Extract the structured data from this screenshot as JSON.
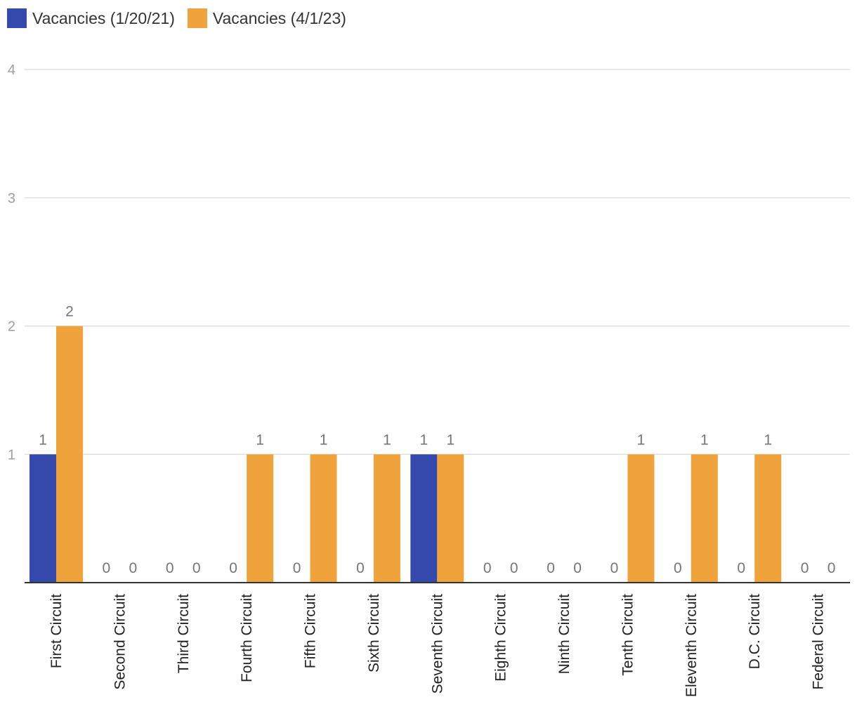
{
  "chart_data": {
    "type": "bar",
    "categories": [
      "First Circuit",
      "Second Circuit",
      "Third Circuit",
      "Fourth Circuit",
      "Fifth Circuit",
      "Sixth Circuit",
      "Seventh Circuit",
      "Eighth Circuit",
      "Ninth Circuit",
      "Tenth Circuit",
      "Eleventh Circuit",
      "D.C. Circuit",
      "Federal Circuit"
    ],
    "series": [
      {
        "name": "Vacancies (1/20/21)",
        "color": "#3449ab",
        "values": [
          1,
          0,
          0,
          0,
          0,
          0,
          1,
          0,
          0,
          0,
          0,
          0,
          0
        ]
      },
      {
        "name": "Vacancies (4/1/23)",
        "color": "#f0a33a",
        "values": [
          2,
          0,
          0,
          1,
          1,
          1,
          1,
          0,
          0,
          1,
          1,
          1,
          0
        ]
      }
    ],
    "ylim": [
      0,
      4
    ],
    "yticks": [
      1,
      2,
      3,
      4
    ],
    "grid": true,
    "legend_position": "top-left",
    "xlabel": "",
    "ylabel": ""
  }
}
